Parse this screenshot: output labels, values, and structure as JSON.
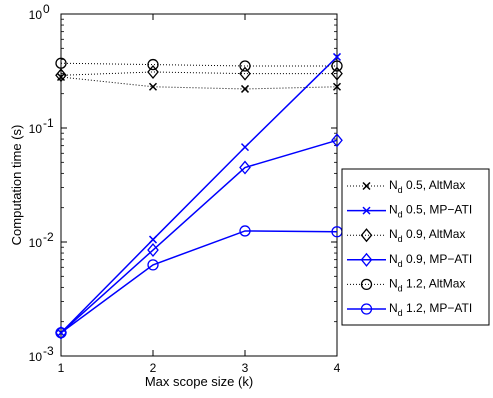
{
  "chart_data": {
    "type": "line",
    "xlabel": "Max scope size (k)",
    "ylabel": "Computation time (s)",
    "xscale": "linear",
    "yscale": "log",
    "xlim": [
      1,
      4
    ],
    "ylim": [
      0.001,
      1
    ],
    "grid": false,
    "legend_position": "right-outside",
    "x": [
      1,
      2,
      3,
      4
    ],
    "x_ticks": [
      "1",
      "2",
      "3",
      "4"
    ],
    "y_ticks": [
      {
        "base": "10",
        "exp": "-3",
        "value": 0.001
      },
      {
        "base": "10",
        "exp": "-2",
        "value": 0.01
      },
      {
        "base": "10",
        "exp": "-1",
        "value": 0.1
      },
      {
        "base": "10",
        "exp": "0",
        "value": 1
      }
    ],
    "series": [
      {
        "name_main": "N",
        "name_sub": "d",
        "name_rest": " 0.5, AltMax",
        "marker": "x",
        "line": "dotted",
        "color": "#000000",
        "values": [
          0.28,
          0.23,
          0.22,
          0.23
        ]
      },
      {
        "name_main": "N",
        "name_sub": "d",
        "name_rest": " 0.5, MP−ATI",
        "marker": "x",
        "line": "solid",
        "color": "#0000ff",
        "values": [
          0.0016,
          0.0105,
          0.068,
          0.42
        ]
      },
      {
        "name_main": "N",
        "name_sub": "d",
        "name_rest": " 0.9, AltMax",
        "marker": "diamond",
        "line": "dotted",
        "color": "#000000",
        "values": [
          0.29,
          0.31,
          0.3,
          0.3
        ]
      },
      {
        "name_main": "N",
        "name_sub": "d",
        "name_rest": " 0.9, MP−ATI",
        "marker": "diamond",
        "line": "solid",
        "color": "#0000ff",
        "values": [
          0.0016,
          0.0085,
          0.045,
          0.078
        ]
      },
      {
        "name_main": "N",
        "name_sub": "d",
        "name_rest": " 1.2, AltMax",
        "marker": "circle",
        "line": "dotted",
        "color": "#000000",
        "values": [
          0.37,
          0.36,
          0.35,
          0.35
        ]
      },
      {
        "name_main": "N",
        "name_sub": "d",
        "name_rest": " 1.2, MP−ATI",
        "marker": "circle",
        "line": "solid",
        "color": "#0000ff",
        "values": [
          0.0016,
          0.0063,
          0.0125,
          0.0123
        ]
      }
    ]
  }
}
